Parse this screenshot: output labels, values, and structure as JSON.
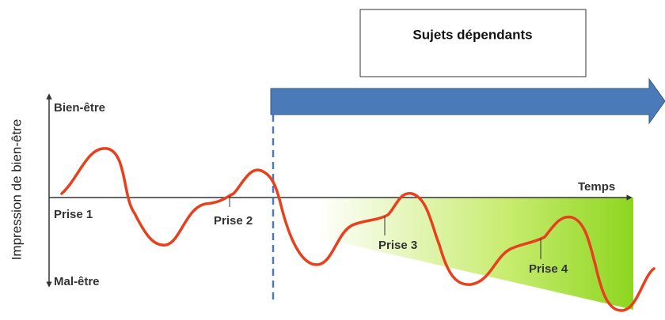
{
  "title": "Sujets dépendants",
  "y_axis": {
    "label": "Impression de bien-être",
    "top": "Bien-être",
    "bottom": "Mal-être"
  },
  "x_axis": {
    "label": "Temps"
  },
  "points": [
    "Prise 1",
    "Prise 2",
    "Prise 3",
    "Prise 4"
  ]
}
